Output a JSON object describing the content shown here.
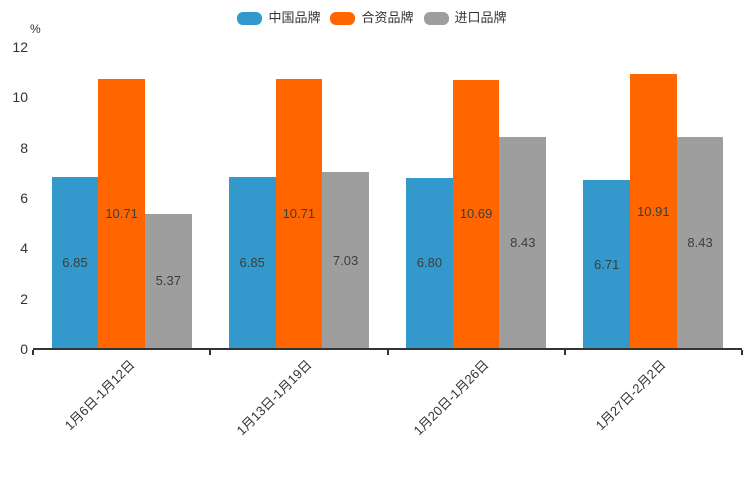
{
  "chart_data": {
    "type": "bar",
    "title": "",
    "xlabel": "",
    "ylabel": "%",
    "categories": [
      "1月6日-1月12日",
      "1月13日-1月19日",
      "1月20日-1月26日",
      "1月27日-2月2日"
    ],
    "series": [
      {
        "name": "中国品牌",
        "color": "#3398cb",
        "values": [
          6.85,
          6.85,
          6.8,
          6.71
        ]
      },
      {
        "name": "合资品牌",
        "color": "#ff6600",
        "values": [
          10.71,
          10.71,
          10.69,
          10.91
        ]
      },
      {
        "name": "进口品牌",
        "color": "#9e9e9e",
        "values": [
          5.37,
          7.03,
          8.43,
          8.43
        ]
      }
    ],
    "ylim": [
      0,
      12
    ],
    "yticks": [
      0,
      2,
      4,
      6,
      8,
      10,
      12
    ],
    "legend_position": "top-center",
    "grid": false,
    "value_label_position": "inside-center",
    "value_label_decimals": 2,
    "x_label_rotation_deg": 45,
    "colors": {
      "axis": "#333333",
      "tick_label": "#333333",
      "value_label": "#3d3d3d",
      "legend_label": "#333333"
    }
  }
}
